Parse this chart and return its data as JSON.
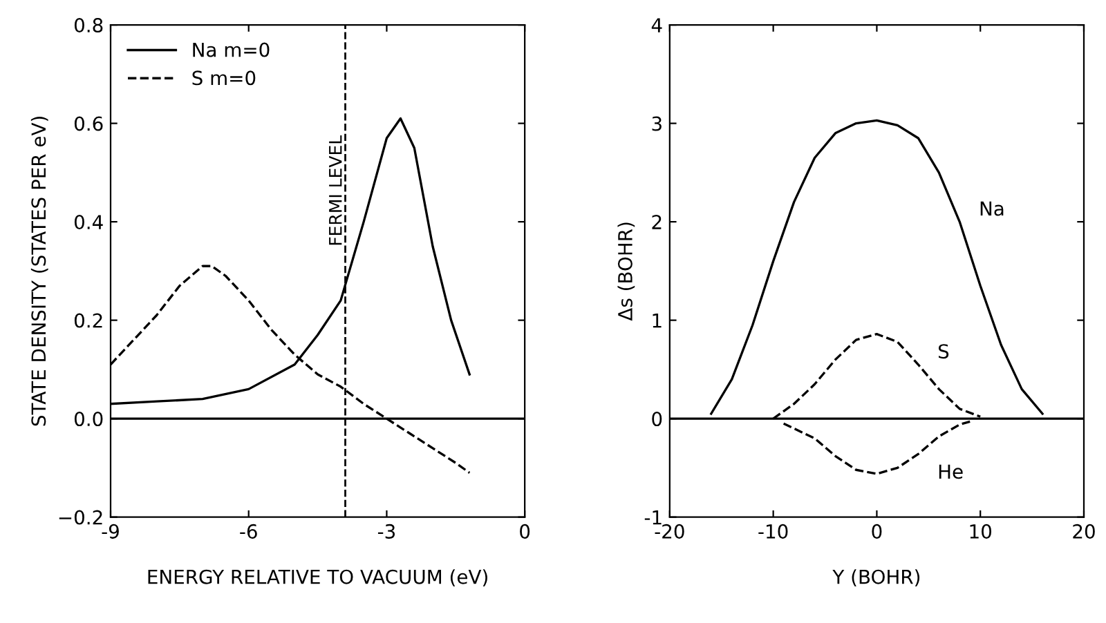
{
  "chart_data": [
    {
      "type": "line",
      "xlabel": "ENERGY RELATIVE TO VACUUM (eV)",
      "ylabel": "STATE DENSITY (STATES PER eV)",
      "xlim": [
        -9,
        0
      ],
      "ylim": [
        -0.2,
        0.8
      ],
      "xticks": [
        -9,
        -6,
        -3,
        0
      ],
      "yticks": [
        {
          "value": -0.2,
          "label": "−0.2"
        },
        {
          "value": 0,
          "label": "0.0"
        },
        0.2,
        0.4,
        0.6,
        0.8
      ],
      "grid": false,
      "legend": "top left",
      "series": [
        {
          "name": "Na m=0",
          "color": "#000000",
          "line_style": "solid",
          "x": [
            -9,
            -8,
            -7,
            -6,
            -5,
            -4.5,
            -4,
            -3.5,
            -3,
            -2.7,
            -2.4,
            -2,
            -1.6,
            -1.2
          ],
          "values": [
            0.03,
            0.035,
            0.04,
            0.06,
            0.11,
            0.17,
            0.24,
            0.4,
            0.57,
            0.61,
            0.55,
            0.35,
            0.2,
            0.09
          ]
        },
        {
          "name": "S m=0",
          "color": "#000000",
          "line_style": "dashed",
          "x": [
            -9,
            -8.5,
            -8,
            -7.5,
            -7,
            -6.8,
            -6.5,
            -6,
            -5.5,
            -5,
            -4.5,
            -4,
            -3.5,
            -3,
            -2.5,
            -2,
            -1.5,
            -1.2
          ],
          "values": [
            0.11,
            0.16,
            0.21,
            0.27,
            0.31,
            0.31,
            0.29,
            0.24,
            0.18,
            0.13,
            0.09,
            0.065,
            0.03,
            0.0,
            -0.03,
            -0.06,
            -0.09,
            -0.11
          ]
        }
      ],
      "ref_lines": [
        {
          "axis": "y",
          "value": 0,
          "color": "#000000",
          "line_style": "solid"
        },
        {
          "axis": "x",
          "value": -3.9,
          "label": "FERMI LEVEL",
          "color": "#000000",
          "line_style": "dashed"
        }
      ]
    },
    {
      "type": "line",
      "xlabel": "Y (BOHR)",
      "ylabel": "Δs (BOHR)",
      "xlim": [
        -20,
        20
      ],
      "ylim": [
        -1,
        4
      ],
      "xticks": [
        -20,
        -10,
        0,
        10,
        20
      ],
      "yticks": [
        -1,
        0,
        1,
        2,
        3,
        4
      ],
      "grid": false,
      "series": [
        {
          "name": "Na",
          "color": "#000000",
          "line_style": "solid",
          "x": [
            -16,
            -14,
            -12,
            -10,
            -8,
            -6,
            -4,
            -2,
            0,
            2,
            4,
            6,
            8,
            10,
            12,
            14,
            16
          ],
          "values": [
            0.05,
            0.4,
            0.95,
            1.6,
            2.2,
            2.65,
            2.9,
            3.0,
            3.03,
            2.98,
            2.85,
            2.5,
            2.0,
            1.35,
            0.75,
            0.3,
            0.05
          ]
        },
        {
          "name": "S",
          "color": "#000000",
          "line_style": "dashed",
          "x": [
            -10,
            -8,
            -6,
            -4,
            -2,
            0,
            2,
            4,
            6,
            8,
            10
          ],
          "values": [
            0.0,
            0.15,
            0.35,
            0.6,
            0.8,
            0.86,
            0.78,
            0.55,
            0.3,
            0.1,
            0.02
          ]
        },
        {
          "name": "He",
          "color": "#000000",
          "line_style": "dashed",
          "x": [
            -9,
            -6,
            -4,
            -2,
            0,
            2,
            4,
            6,
            8,
            9
          ],
          "values": [
            -0.05,
            -0.2,
            -0.38,
            -0.52,
            -0.56,
            -0.5,
            -0.36,
            -0.18,
            -0.06,
            -0.03
          ]
        }
      ],
      "ref_lines": [
        {
          "axis": "y",
          "value": 0,
          "color": "#000000",
          "line_style": "solid"
        }
      ]
    }
  ]
}
